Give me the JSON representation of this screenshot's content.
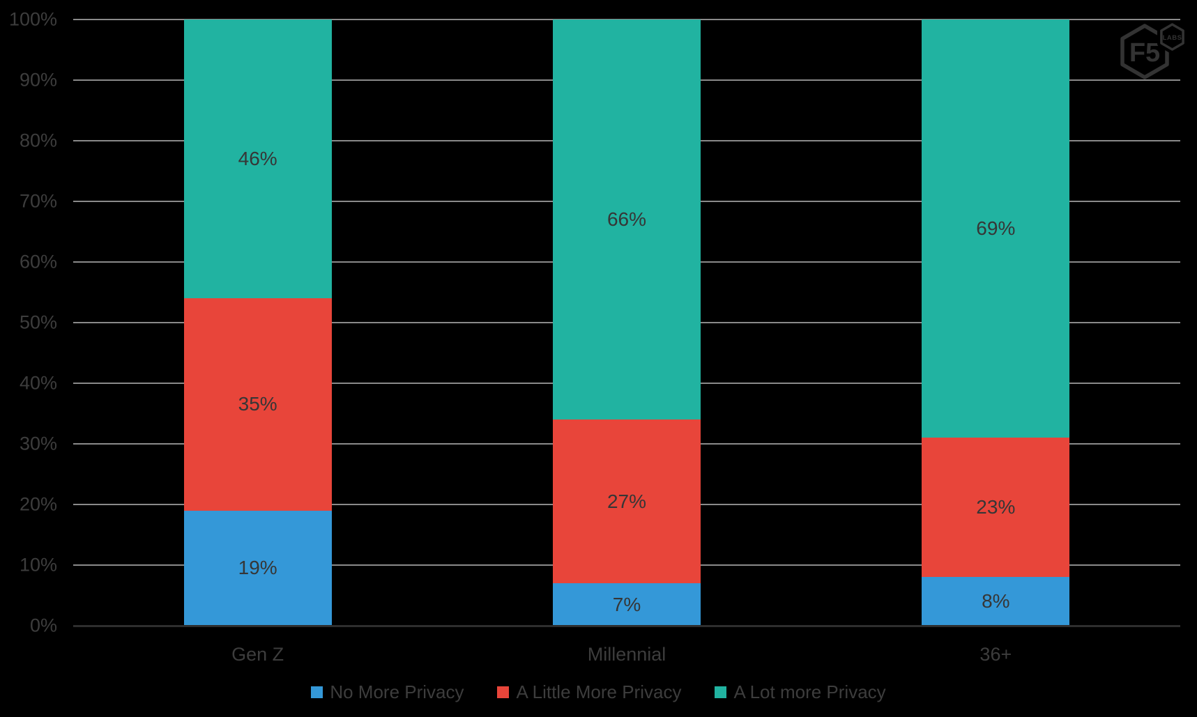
{
  "logo": {
    "primary": "F5",
    "secondary": "LABS"
  },
  "colors": {
    "background": "#000000",
    "gridline": "#8a8a8a",
    "axis": "#2e2e2e",
    "text": "#3d3d3d",
    "data_label": "#363636",
    "logo": "#333333",
    "series_blue": "#3498d8",
    "series_red": "#e8453a",
    "series_teal": "#21b3a1"
  },
  "chart_data": {
    "type": "bar",
    "subtype": "stacked-100",
    "title": "",
    "xlabel": "",
    "ylabel": "",
    "ylim": [
      0,
      100
    ],
    "grid": true,
    "legend_position": "bottom",
    "categories": [
      "Gen Z",
      "Millennial",
      "36+"
    ],
    "series": [
      {
        "name": "No More Privacy",
        "color": "#3498d8",
        "values": [
          19,
          7,
          8
        ],
        "labels": [
          "19%",
          "7%",
          "8%"
        ]
      },
      {
        "name": "A Little More Privacy",
        "color": "#e8453a",
        "values": [
          35,
          27,
          23
        ],
        "labels": [
          "35%",
          "27%",
          "23%"
        ]
      },
      {
        "name": "A Lot more Privacy",
        "color": "#21b3a1",
        "values": [
          46,
          66,
          69
        ],
        "labels": [
          "46%",
          "66%",
          "69%"
        ]
      }
    ],
    "y_ticks": [
      "0%",
      "10%",
      "20%",
      "30%",
      "40%",
      "50%",
      "60%",
      "70%",
      "80%",
      "90%",
      "100%"
    ]
  }
}
